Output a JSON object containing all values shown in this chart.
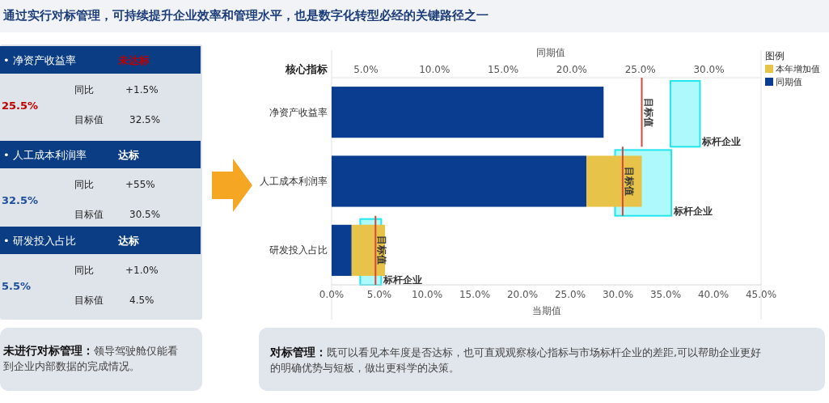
{
  "chart_data": [
    {
      "type": "other",
      "title": "通过实行对标管理，可持续提升企业效率和管理水平，也是数字化转型必经的关键路径之一",
      "annotations": [
        "• 净资产收益率",
        "未达标",
        "25.5%",
        "同比",
        "+1.5%",
        "目标值",
        "32.5%",
        "• 人工成本利润率",
        "达标",
        "32.5%",
        "同比",
        "+55%",
        "目标值",
        "30.5%",
        "• 研发投入占比",
        "达标",
        "5.5%",
        "同比",
        "+1.0%",
        "目标值",
        "4.5%",
        "未进行对标管理：领导驾驶舱仅能看到企业内部数据的完成情况。"
      ],
      "colors": [
        "#c00000",
        "#c00000",
        "#ffffff",
        "#1f4e9a",
        "#ffffff",
        "#1f4e9a"
      ]
    },
    {
      "type": "bar",
      "orientation": "horizontal",
      "stacked": true,
      "categories": [
        "净资产收益率",
        "人工成本利润率",
        "研发投入占比"
      ],
      "ylabel": "核心指标",
      "xlabel": "当期值",
      "x2label": "同期值",
      "xlim": [
        0,
        45
      ],
      "xticks": [
        {
          "value": 0,
          "label": "0.0%"
        },
        {
          "value": 5,
          "label": "5.0%"
        },
        {
          "value": 10,
          "label": "10.0%"
        },
        {
          "value": 15,
          "label": "15.0%"
        },
        {
          "value": 20,
          "label": "20.0%"
        },
        {
          "value": 25,
          "label": "25.0%"
        },
        {
          "value": 30,
          "label": "30.0%"
        },
        {
          "value": 35,
          "label": "35.0%"
        },
        {
          "value": 40,
          "label": "40.0%"
        },
        {
          "value": 45,
          "label": "45.0%"
        }
      ],
      "x2lim": [
        2.5,
        33.8
      ],
      "x2ticks": [
        {
          "value": 5,
          "label": "5.0%"
        },
        {
          "value": 10,
          "label": "10.0%"
        },
        {
          "value": 15,
          "label": "15.0%"
        },
        {
          "value": 20,
          "label": "20.0%"
        },
        {
          "value": 25,
          "label": "25.0%"
        },
        {
          "value": 30,
          "label": "30.0%"
        }
      ],
      "legend": "top right",
      "legend_title": "图例",
      "grid": false,
      "series": [
        {
          "name": "同期值",
          "color": "#0a3d8f",
          "values": [
            28.5,
            26.7,
            2.1
          ]
        },
        {
          "name": "本年增加值",
          "color": "#e8c34a",
          "values": [
            null,
            5.8,
            3.5
          ]
        }
      ],
      "bands": [
        {
          "axis": "x",
          "from": 35.5,
          "to": 38.6,
          "label": "标杆企业",
          "color": "#aef9fb"
        },
        {
          "axis": "x",
          "from": 29.7,
          "to": 35.6,
          "label": "标杆企业",
          "color": "#aef9fb"
        },
        {
          "axis": "x",
          "from": 3.0,
          "to": 5.2,
          "label": "标杆企业",
          "color": "#aef9fb"
        }
      ],
      "ref_lines": [
        {
          "axis": "x",
          "value": 32.5,
          "label": "目标值",
          "color": "#d9473a"
        },
        {
          "axis": "x",
          "value": 30.5,
          "label": "目标值",
          "color": "#d9473a"
        },
        {
          "axis": "x",
          "value": 4.6,
          "label": "目标值",
          "color": "#d9473a"
        }
      ],
      "annotations": [
        "对标管理：既可以看见本年度是否达标，也可直观观察核心指标与市场标杆企业的差距,可以帮助企业更好的明确优势与短板，做出更科学的决策。"
      ]
    }
  ]
}
